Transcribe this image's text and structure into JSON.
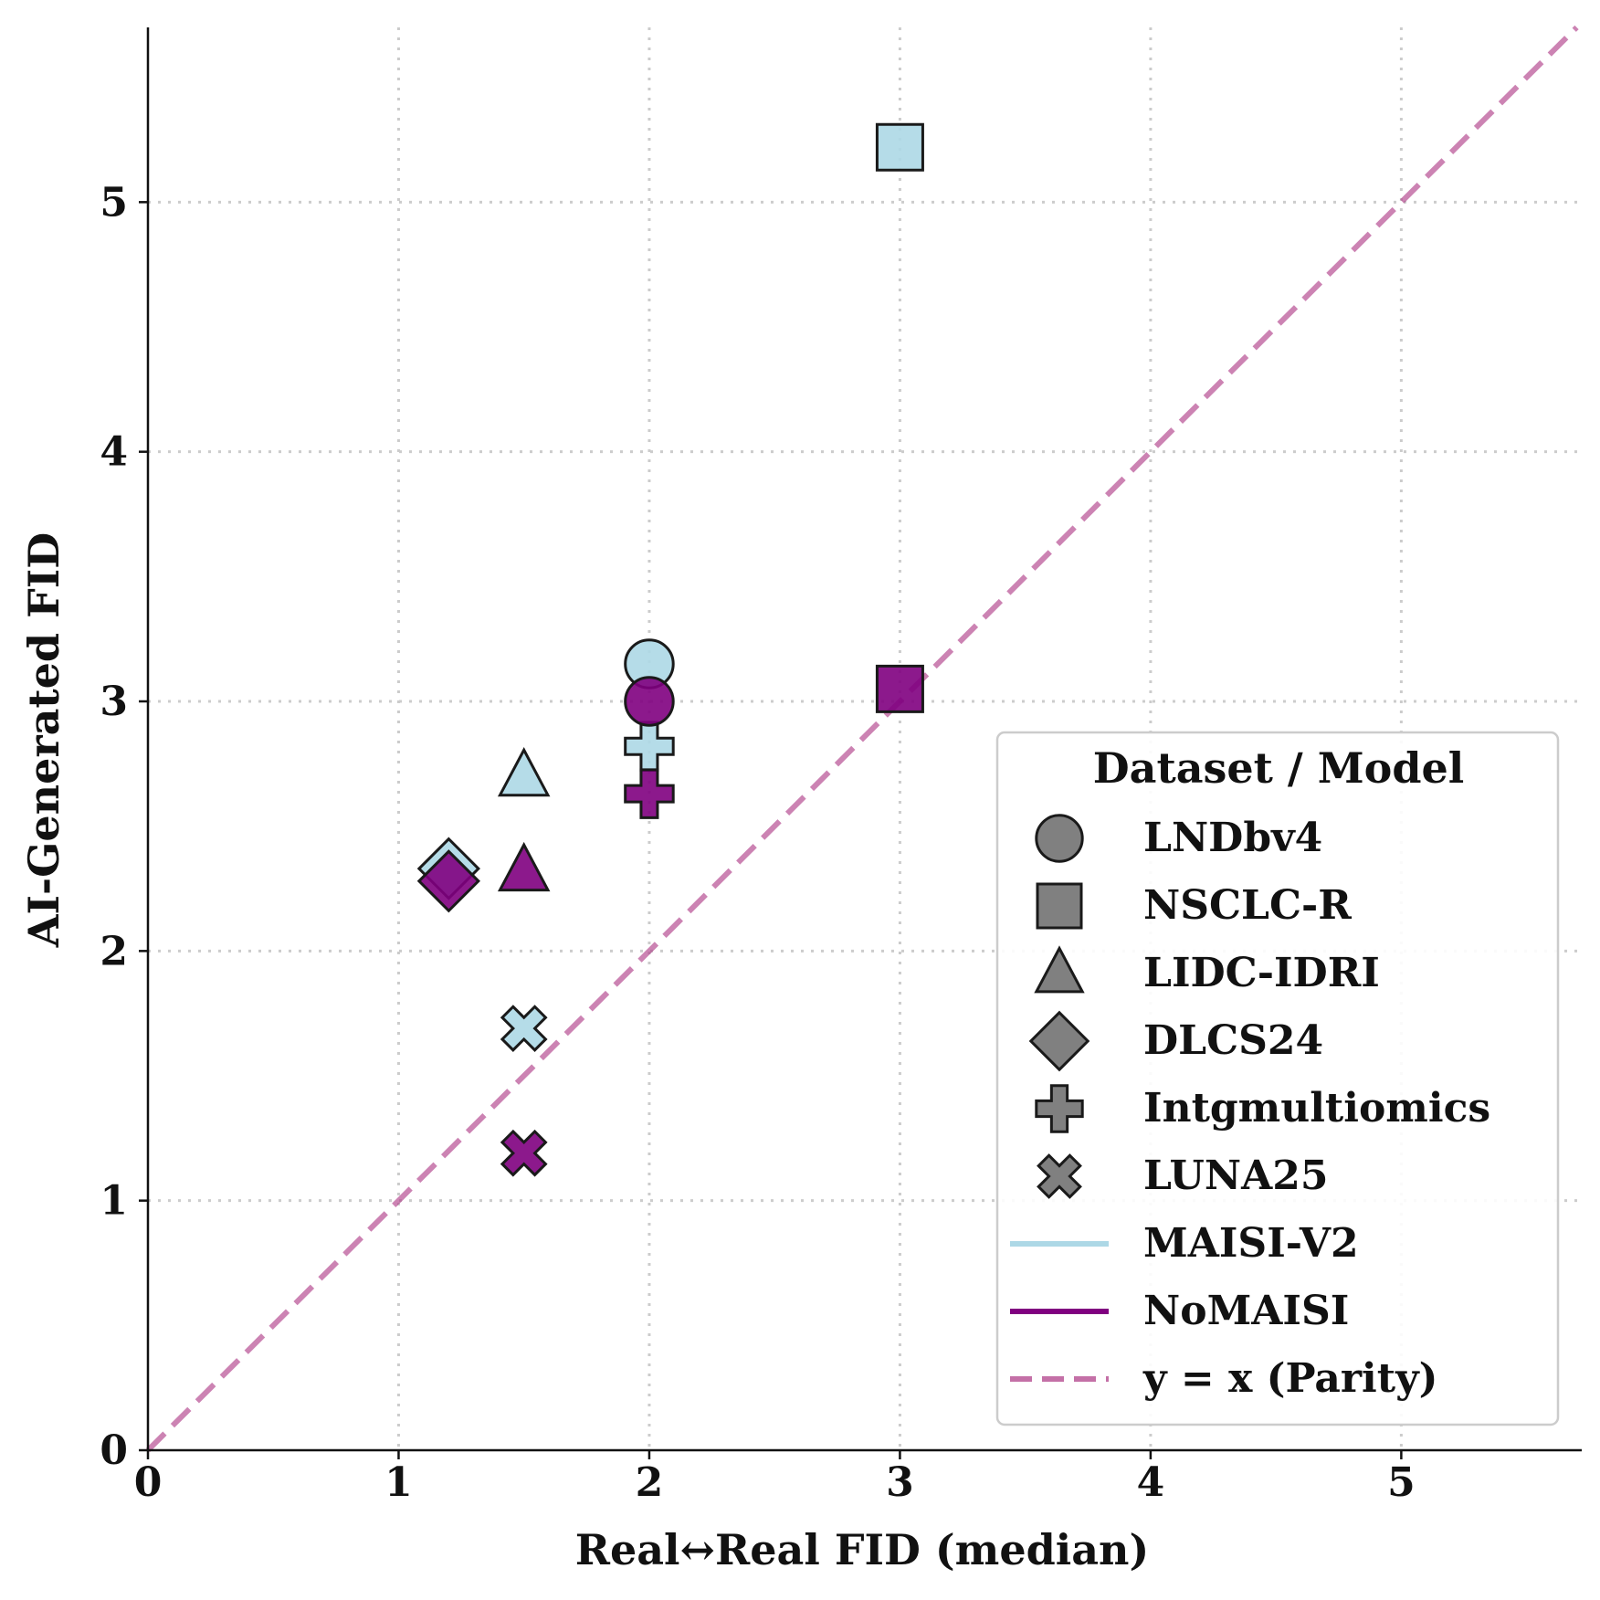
{
  "chart_data": {
    "type": "scatter",
    "title": "",
    "xlabel": "Real↔Real FID (median)",
    "ylabel": "AI-Generated FID",
    "xlim": [
      0,
      5.72
    ],
    "ylim": [
      0,
      5.7
    ],
    "x_ticks": [
      "0",
      "1",
      "2",
      "3",
      "4",
      "5"
    ],
    "y_ticks": [
      "0",
      "1",
      "2",
      "3",
      "4",
      "5"
    ],
    "grid": "on (dotted)",
    "legend_placement": "lower-right",
    "legend_title": "Dataset / Model",
    "datasets": [
      {
        "name": "LNDbv4",
        "marker": "circle"
      },
      {
        "name": "NSCLC-R",
        "marker": "square"
      },
      {
        "name": "LIDC-IDRI",
        "marker": "triangle"
      },
      {
        "name": "DLCS24",
        "marker": "diamond"
      },
      {
        "name": "Intgmultiomics",
        "marker": "plus"
      },
      {
        "name": "LUNA25",
        "marker": "x"
      }
    ],
    "series": [
      {
        "name": "MAISI-V2",
        "color": "#add8e6",
        "points": [
          {
            "dataset": "LNDbv4",
            "x": 2.0,
            "y": 3.15
          },
          {
            "dataset": "NSCLC-R",
            "x": 3.0,
            "y": 5.22
          },
          {
            "dataset": "LIDC-IDRI",
            "x": 1.5,
            "y": 2.7
          },
          {
            "dataset": "DLCS24",
            "x": 1.2,
            "y": 2.33
          },
          {
            "dataset": "Intgmultiomics",
            "x": 2.0,
            "y": 2.82
          },
          {
            "dataset": "LUNA25",
            "x": 1.5,
            "y": 1.69
          }
        ]
      },
      {
        "name": "NoMAISI",
        "color": "#800080",
        "points": [
          {
            "dataset": "LNDbv4",
            "x": 2.0,
            "y": 3.0
          },
          {
            "dataset": "NSCLC-R",
            "x": 3.0,
            "y": 3.05
          },
          {
            "dataset": "LIDC-IDRI",
            "x": 1.5,
            "y": 2.32
          },
          {
            "dataset": "DLCS24",
            "x": 1.2,
            "y": 2.28
          },
          {
            "dataset": "Intgmultiomics",
            "x": 2.0,
            "y": 2.63
          },
          {
            "dataset": "LUNA25",
            "x": 1.5,
            "y": 1.19
          }
        ]
      }
    ],
    "reference_line": {
      "name": "y = x (Parity)",
      "color": "#b0408a",
      "style": "dashed"
    },
    "colors": {
      "legend_marker": "#808080",
      "edge": "#1a1a1a",
      "grid": "#cccccc"
    }
  }
}
